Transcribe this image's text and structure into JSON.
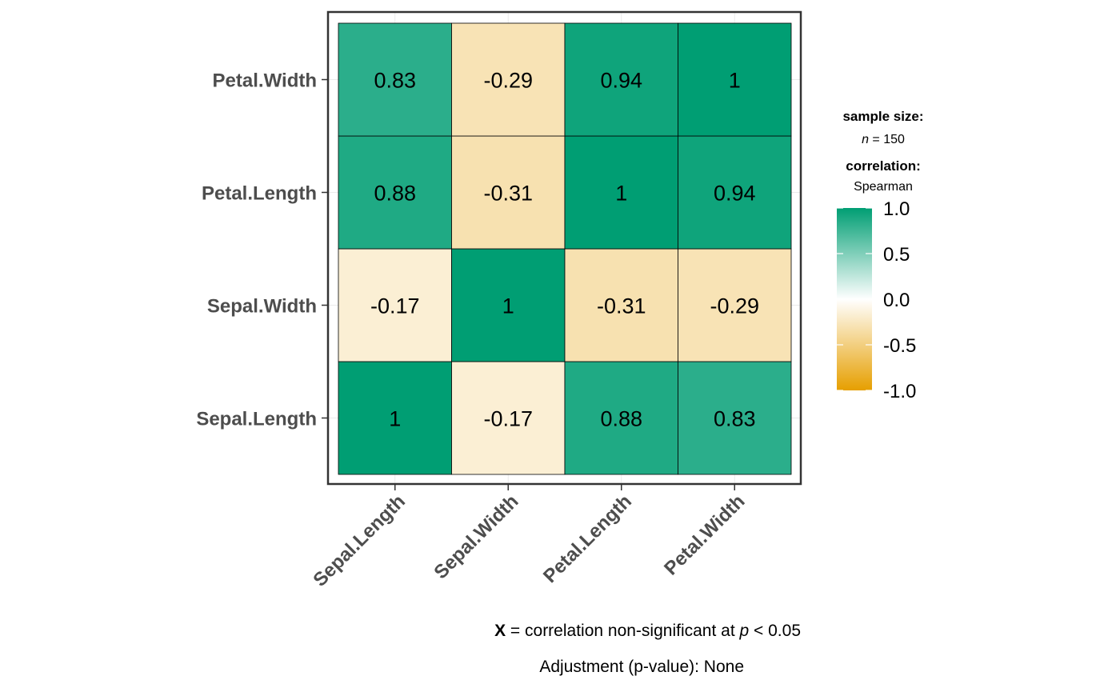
{
  "chart_data": {
    "type": "heatmap",
    "x_categories": [
      "Sepal.Length",
      "Sepal.Width",
      "Petal.Length",
      "Petal.Width"
    ],
    "y_categories": [
      "Sepal.Length",
      "Sepal.Width",
      "Petal.Length",
      "Petal.Width"
    ],
    "matrix": [
      [
        1,
        -0.17,
        0.88,
        0.83
      ],
      [
        -0.17,
        1,
        -0.31,
        -0.29
      ],
      [
        0.88,
        -0.31,
        1,
        0.94
      ],
      [
        0.83,
        -0.29,
        0.94,
        1
      ]
    ],
    "cell_labels": [
      [
        "1",
        "-0.17",
        "0.88",
        "0.83"
      ],
      [
        "-0.17",
        "1",
        "-0.31",
        "-0.29"
      ],
      [
        "0.88",
        "-0.31",
        "1",
        "0.94"
      ],
      [
        "0.83",
        "-0.29",
        "0.94",
        "1"
      ]
    ],
    "color_scale": {
      "low": "#E69F00",
      "mid": "#FFFFFF",
      "high": "#009E73",
      "domain": [
        -1,
        1
      ]
    },
    "legend": {
      "sample_size_title": "sample size:",
      "sample_size_n": "n",
      "sample_size_rest": " = 150",
      "correlation_title": "correlation:",
      "correlation_method": "Spearman",
      "ticks": [
        1.0,
        0.5,
        0.0,
        -0.5,
        -1.0
      ],
      "tick_labels": [
        "1.0",
        "0.5",
        "0.0",
        "-0.5",
        "-1.0"
      ],
      "placement": "right"
    },
    "caption": {
      "x_mark": "X",
      "line1_mid": " = correlation non-significant at ",
      "p": "p",
      "line1_end": " < 0.05",
      "line2": "Adjustment (p-value): None"
    },
    "grid": true
  }
}
